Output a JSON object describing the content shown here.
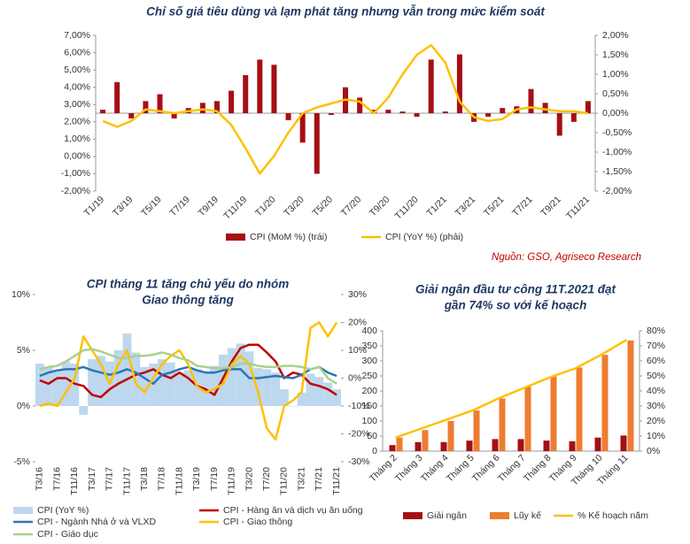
{
  "chart_data": [
    {
      "type": "combo",
      "title": [
        "Chỉ số giá tiêu dùng và lạm phát tăng nhưng vẫn trong mức kiểm soát"
      ],
      "source": "Nguồn: GSO, Agriseco Research",
      "categories": [
        "T1/19",
        null,
        "T3/19",
        null,
        "T5/19",
        null,
        "T7/19",
        null,
        "T9/19",
        null,
        "T11/19",
        null,
        "T1/20",
        null,
        "T3/20",
        null,
        "T5/20",
        null,
        "T7/20",
        null,
        "T9/20",
        null,
        "T11/20",
        null,
        "T1/21",
        null,
        "T3/21",
        null,
        "T5/21",
        null,
        "T7/21",
        null,
        "T9/21",
        null,
        "T11/21"
      ],
      "series": [
        {
          "name": "CPI (MoM %) (trái)",
          "type": "bar",
          "color": "#a50f15",
          "values": [
            2.7,
            4.3,
            2.2,
            3.2,
            3.6,
            2.2,
            2.8,
            3.1,
            3.2,
            3.8,
            4.7,
            5.6,
            5.3,
            2.1,
            0.8,
            -1.0,
            2.4,
            4.0,
            3.4,
            2.7,
            2.7,
            2.6,
            2.3,
            5.6,
            2.6,
            5.9,
            2.0,
            2.3,
            2.8,
            2.9,
            3.9,
            3.1,
            1.2,
            2.0,
            3.2
          ]
        },
        {
          "name": "CPI (YoY %) (phải)",
          "type": "line",
          "axis": "y2",
          "color": "#ffc000",
          "values": [
            -0.2,
            -0.35,
            -0.2,
            0.1,
            0.05,
            0.0,
            0.05,
            0.1,
            0.05,
            -0.3,
            -0.9,
            -1.55,
            -1.1,
            -0.5,
            0.0,
            0.15,
            0.25,
            0.35,
            0.3,
            0.0,
            0.4,
            1.0,
            1.5,
            1.75,
            1.3,
            0.3,
            -0.1,
            -0.2,
            -0.15,
            0.1,
            0.15,
            0.1,
            0.05,
            0.05,
            0.0
          ]
        }
      ],
      "ylim": [
        -2,
        7
      ],
      "yticks": [
        {
          "value": 7,
          "label": "7,00%"
        },
        {
          "value": 6,
          "label": "6,00%"
        },
        {
          "value": 5,
          "label": "5,00%"
        },
        {
          "value": 4,
          "label": "4,00%"
        },
        {
          "value": 3,
          "label": "3,00%"
        },
        {
          "value": 2,
          "label": "2,00%"
        },
        {
          "value": 1,
          "label": "1,00%"
        },
        {
          "value": 0,
          "label": "0,00%"
        },
        {
          "value": -1,
          "label": "-1,00%"
        },
        {
          "value": -2,
          "label": "-2,00%"
        }
      ],
      "y2lim": [
        -2,
        2
      ],
      "y2ticks": [
        {
          "value": 2,
          "label": "2,00%"
        },
        {
          "value": 1.5,
          "label": "1,50%"
        },
        {
          "value": 1,
          "label": "1,00%"
        },
        {
          "value": 0.5,
          "label": "0,50%"
        },
        {
          "value": 0,
          "label": "0,00%"
        },
        {
          "value": -0.5,
          "label": "-0,50%"
        },
        {
          "value": -1,
          "label": "-1,00%"
        },
        {
          "value": -1.5,
          "label": "-1,50%"
        },
        {
          "value": -2,
          "label": "-2,00%"
        }
      ],
      "grid": false,
      "legend": "bottom"
    },
    {
      "type": "combo",
      "title": [
        "CPI tháng 11 tăng chủ yếu do nhóm",
        "Giao thông tăng"
      ],
      "categories": [
        "T3/16",
        null,
        "T7/16",
        null,
        "T11/16",
        null,
        "T3/17",
        null,
        "T7/17",
        null,
        "T11/17",
        null,
        "T3/18",
        null,
        "T7/18",
        null,
        "T11/18",
        null,
        "T3/19",
        null,
        "T7/19",
        null,
        "T11/19",
        null,
        "T3/20",
        null,
        "T7/20",
        null,
        "T11/20",
        null,
        "T3/21",
        null,
        "T7/21",
        null,
        "T11/21"
      ],
      "series": [
        {
          "name": "CPI (YoY %)",
          "type": "bar",
          "color": "#bdd7ee",
          "values": [
            3.8,
            3.5,
            3.2,
            4.0,
            3.8,
            -0.8,
            4.2,
            4.5,
            4.0,
            5.0,
            6.5,
            4.8,
            3.5,
            3.8,
            4.2,
            3.9,
            3.0,
            3.2,
            3.3,
            3.0,
            3.6,
            4.6,
            5.2,
            5.6,
            4.9,
            3.4,
            3.3,
            3.0,
            1.5,
            0.0,
            1.2,
            2.9,
            2.6,
            2.1,
            1.5
          ]
        },
        {
          "name": "CPI - Hàng ăn và dịch vụ ăn uống",
          "type": "line",
          "color": "#c00000",
          "values": [
            2.3,
            2.0,
            2.5,
            2.5,
            2.0,
            1.8,
            1.0,
            0.8,
            1.5,
            2.0,
            2.4,
            2.8,
            3.0,
            3.3,
            2.8,
            2.5,
            3.0,
            2.5,
            1.8,
            1.5,
            1.0,
            2.5,
            4.0,
            5.2,
            5.5,
            5.5,
            4.8,
            4.0,
            2.5,
            3.0,
            2.8,
            2.0,
            1.8,
            1.5,
            1.0
          ]
        },
        {
          "name": "CPI - Ngành Nhà ở và VLXD",
          "type": "line",
          "color": "#2e75b6",
          "values": [
            2.7,
            3.0,
            3.2,
            3.3,
            3.3,
            3.5,
            3.2,
            3.0,
            2.8,
            3.0,
            3.3,
            3.0,
            2.5,
            2.0,
            2.8,
            3.0,
            3.3,
            3.5,
            3.2,
            3.0,
            3.0,
            3.2,
            3.3,
            3.3,
            2.5,
            2.5,
            2.6,
            2.7,
            2.6,
            2.5,
            2.8,
            3.3,
            3.5,
            3.0,
            2.7
          ]
        },
        {
          "name": "CPI - Giao thông",
          "type": "line",
          "axis": "y2",
          "color": "#ffc000",
          "values": [
            -10,
            -9,
            -10,
            -5,
            0,
            15,
            10,
            5,
            -2,
            5,
            10,
            -2,
            -5,
            0,
            5,
            8,
            10,
            5,
            -3,
            -5,
            -4,
            -2,
            5,
            8,
            5,
            -5,
            -18,
            -22,
            -10,
            -8,
            -5,
            18,
            20,
            15,
            20
          ]
        },
        {
          "name": "CPI - Giáo dục",
          "type": "line",
          "color": "#a9d18e",
          "values": [
            3.3,
            3.5,
            3.6,
            4.0,
            4.5,
            5.0,
            5.1,
            4.9,
            4.6,
            4.3,
            4.3,
            4.5,
            4.5,
            4.6,
            4.8,
            4.6,
            4.3,
            4.1,
            3.6,
            3.5,
            3.4,
            3.4,
            3.5,
            3.8,
            3.8,
            3.6,
            3.5,
            3.5,
            3.6,
            3.6,
            3.5,
            3.3,
            3.5,
            2.5,
            2.0
          ]
        }
      ],
      "ylim": [
        -5,
        10
      ],
      "yticks": [
        {
          "value": 10,
          "label": "10%"
        },
        {
          "value": 5,
          "label": "5%"
        },
        {
          "value": 0,
          "label": "0%"
        },
        {
          "value": -5,
          "label": "-5%"
        }
      ],
      "y2lim": [
        -30,
        30
      ],
      "y2ticks": [
        {
          "value": 30,
          "label": "30%"
        },
        {
          "value": 20,
          "label": "20%"
        },
        {
          "value": 10,
          "label": "10%"
        },
        {
          "value": 0,
          "label": "0%"
        },
        {
          "value": -10,
          "label": "-10%"
        },
        {
          "value": -20,
          "label": "-20%"
        },
        {
          "value": -30,
          "label": "-30%"
        }
      ],
      "grid": false,
      "legend": "bottom"
    },
    {
      "type": "combo",
      "title": [
        "Giải ngân đầu tư công 11T.2021 đạt",
        "gần 74% so với kế hoạch"
      ],
      "categories": [
        "Tháng 2",
        "Tháng 3",
        "Tháng 4",
        "Tháng 5",
        "Tháng 6",
        "Tháng 7",
        "Tháng 8",
        "Tháng 9",
        "Tháng 10",
        "Tháng 11"
      ],
      "series": [
        {
          "name": "Giải ngân",
          "type": "bar",
          "color": "#a50f15",
          "values": [
            20,
            30,
            30,
            35,
            40,
            40,
            35,
            33,
            45,
            52
          ]
        },
        {
          "name": "Lũy kế",
          "type": "bar",
          "color": "#ed7d31",
          "values": [
            45,
            70,
            100,
            135,
            175,
            215,
            248,
            278,
            320,
            368
          ]
        },
        {
          "name": "% Kế hoạch năm",
          "type": "line",
          "axis": "y2",
          "color": "#ffc000",
          "values": [
            9,
            15,
            21,
            27,
            35,
            42,
            49,
            55,
            64,
            74
          ]
        }
      ],
      "ylim": [
        0,
        400
      ],
      "yticks": [
        0,
        50,
        100,
        150,
        200,
        250,
        300,
        350,
        400
      ],
      "y2lim": [
        0,
        80
      ],
      "y2ticks": [
        {
          "value": 0,
          "label": "0%"
        },
        {
          "value": 10,
          "label": "10%"
        },
        {
          "value": 20,
          "label": "20%"
        },
        {
          "value": 30,
          "label": "30%"
        },
        {
          "value": 40,
          "label": "40%"
        },
        {
          "value": 50,
          "label": "50%"
        },
        {
          "value": 60,
          "label": "60%"
        },
        {
          "value": 70,
          "label": "70%"
        },
        {
          "value": 80,
          "label": "80%"
        }
      ],
      "grid": false,
      "legend": "bottom"
    }
  ]
}
